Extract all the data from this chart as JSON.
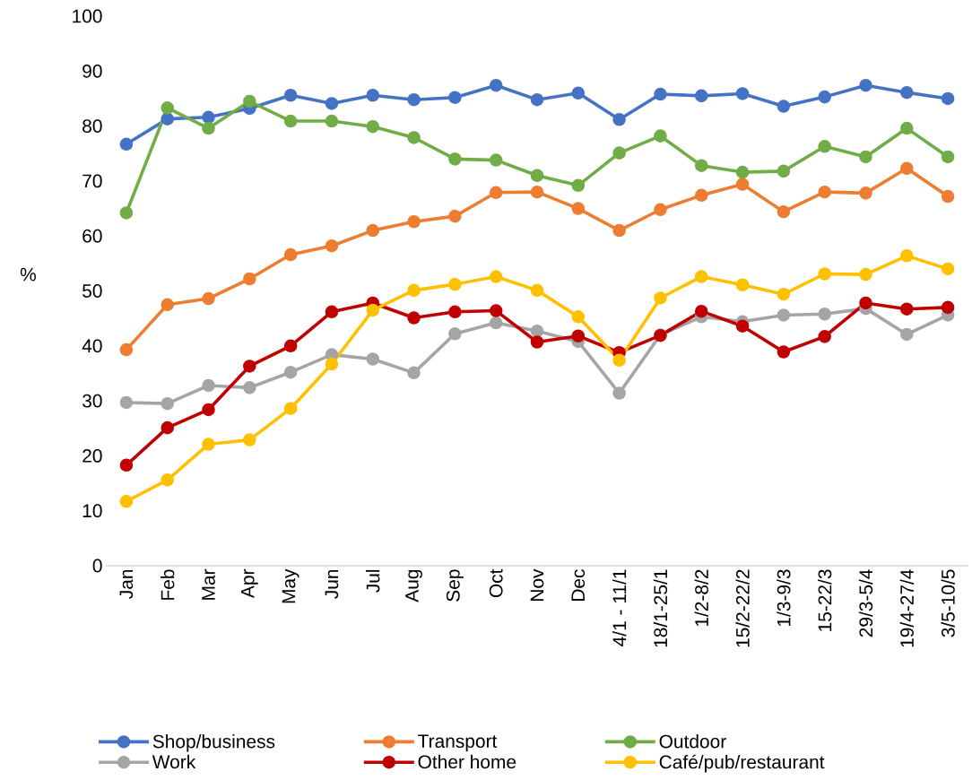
{
  "chart_data": {
    "type": "line",
    "ylabel": "%",
    "categories": [
      "Jan",
      "Feb",
      "Mar",
      "Apr",
      "May",
      "Jun",
      "Jul",
      "Aug",
      "Sep",
      "Oct",
      "Nov",
      "Dec",
      "4/1 - 11/1",
      "18/1-25/1",
      "1/2-8/2",
      "15/2-22/2",
      "1/3-9/3",
      "15-22/3",
      "29/3-5/4",
      "19/4-27/4",
      "3/5-10/5"
    ],
    "series": [
      {
        "name": "Shop/business",
        "color": "#4472c4",
        "values": [
          76.7,
          81.3,
          81.6,
          83.2,
          85.6,
          84.1,
          85.6,
          84.8,
          85.2,
          87.4,
          84.8,
          86.0,
          81.2,
          85.8,
          85.5,
          85.9,
          83.6,
          85.3,
          87.4,
          86.1,
          85.0
        ]
      },
      {
        "name": "Transport",
        "color": "#ed7d31",
        "values": [
          39.3,
          47.5,
          48.6,
          52.2,
          56.6,
          58.2,
          61.0,
          62.6,
          63.6,
          67.9,
          68.0,
          65.0,
          61.0,
          64.8,
          67.4,
          69.4,
          64.4,
          68.0,
          67.8,
          72.3,
          67.2
        ]
      },
      {
        "name": "Outdoor",
        "color": "#70ad47",
        "values": [
          64.2,
          83.3,
          79.6,
          84.5,
          80.9,
          80.9,
          79.9,
          77.9,
          74.0,
          73.8,
          71.0,
          69.2,
          75.1,
          78.2,
          72.8,
          71.6,
          71.8,
          76.3,
          74.4,
          79.6,
          74.4
        ]
      },
      {
        "name": "Work",
        "color": "#a5a5a5",
        "values": [
          29.7,
          29.5,
          32.8,
          32.4,
          35.2,
          38.4,
          37.6,
          35.1,
          42.2,
          44.2,
          42.7,
          40.8,
          31.4,
          42.0,
          45.3,
          44.4,
          45.6,
          45.8,
          46.8,
          42.1,
          45.6
        ]
      },
      {
        "name": "Other home",
        "color": "#c00000",
        "values": [
          18.3,
          25.1,
          28.4,
          36.3,
          40.0,
          46.2,
          47.8,
          45.1,
          46.2,
          46.4,
          40.7,
          41.8,
          38.8,
          41.9,
          46.3,
          43.6,
          38.9,
          41.7,
          47.8,
          46.7,
          47.0
        ]
      },
      {
        "name": "Café/pub/restaurant",
        "color": "#ffc000",
        "values": [
          11.7,
          15.6,
          22.1,
          22.9,
          28.6,
          36.7,
          46.5,
          50.1,
          51.2,
          52.6,
          50.1,
          45.3,
          37.4,
          48.7,
          52.6,
          51.1,
          49.4,
          53.1,
          53.0,
          56.4,
          54.0
        ]
      }
    ],
    "ylim": [
      0,
      100
    ],
    "yticks": [
      0,
      10,
      20,
      30,
      40,
      50,
      60,
      70,
      80,
      90,
      100
    ],
    "grid": false,
    "legend": "bottom",
    "marker": "circle",
    "line_style": "solid"
  }
}
